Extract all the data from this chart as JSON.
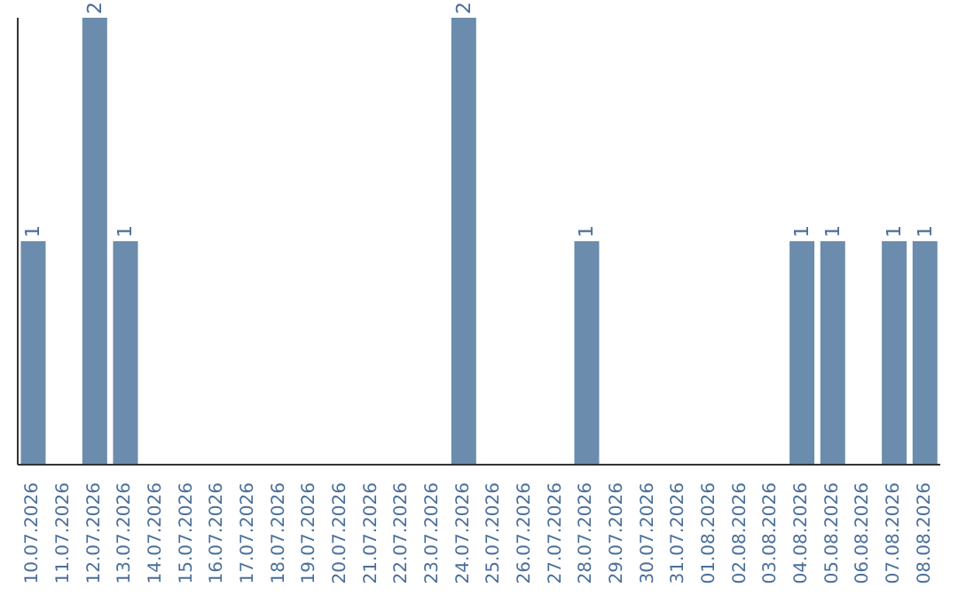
{
  "chart_data": {
    "type": "bar",
    "categories": [
      "10.07.2026",
      "11.07.2026",
      "12.07.2026",
      "13.07.2026",
      "14.07.2026",
      "15.07.2026",
      "16.07.2026",
      "17.07.2026",
      "18.07.2026",
      "19.07.2026",
      "20.07.2026",
      "21.07.2026",
      "22.07.2026",
      "23.07.2026",
      "24.07.2026",
      "25.07.2026",
      "26.07.2026",
      "27.07.2026",
      "28.07.2026",
      "29.07.2026",
      "30.07.2026",
      "31.07.2026",
      "01.08.2026",
      "02.08.2026",
      "03.08.2026",
      "04.08.2026",
      "05.08.2026",
      "06.08.2026",
      "07.08.2026",
      "08.08.2026"
    ],
    "values": [
      1,
      0,
      2,
      1,
      0,
      0,
      0,
      0,
      0,
      0,
      0,
      0,
      0,
      0,
      2,
      0,
      0,
      0,
      1,
      0,
      0,
      0,
      0,
      0,
      0,
      1,
      1,
      0,
      1,
      1
    ],
    "value_labels": [
      "1",
      null,
      "2",
      "1",
      null,
      null,
      null,
      null,
      null,
      null,
      null,
      null,
      null,
      null,
      "2",
      null,
      null,
      null,
      "1",
      null,
      null,
      null,
      null,
      null,
      null,
      "1",
      "1",
      null,
      "1",
      "1"
    ],
    "color": "#6b8cac",
    "ylim": [
      0,
      2
    ],
    "tick_labels": "x",
    "grid": false,
    "legend": false
  }
}
